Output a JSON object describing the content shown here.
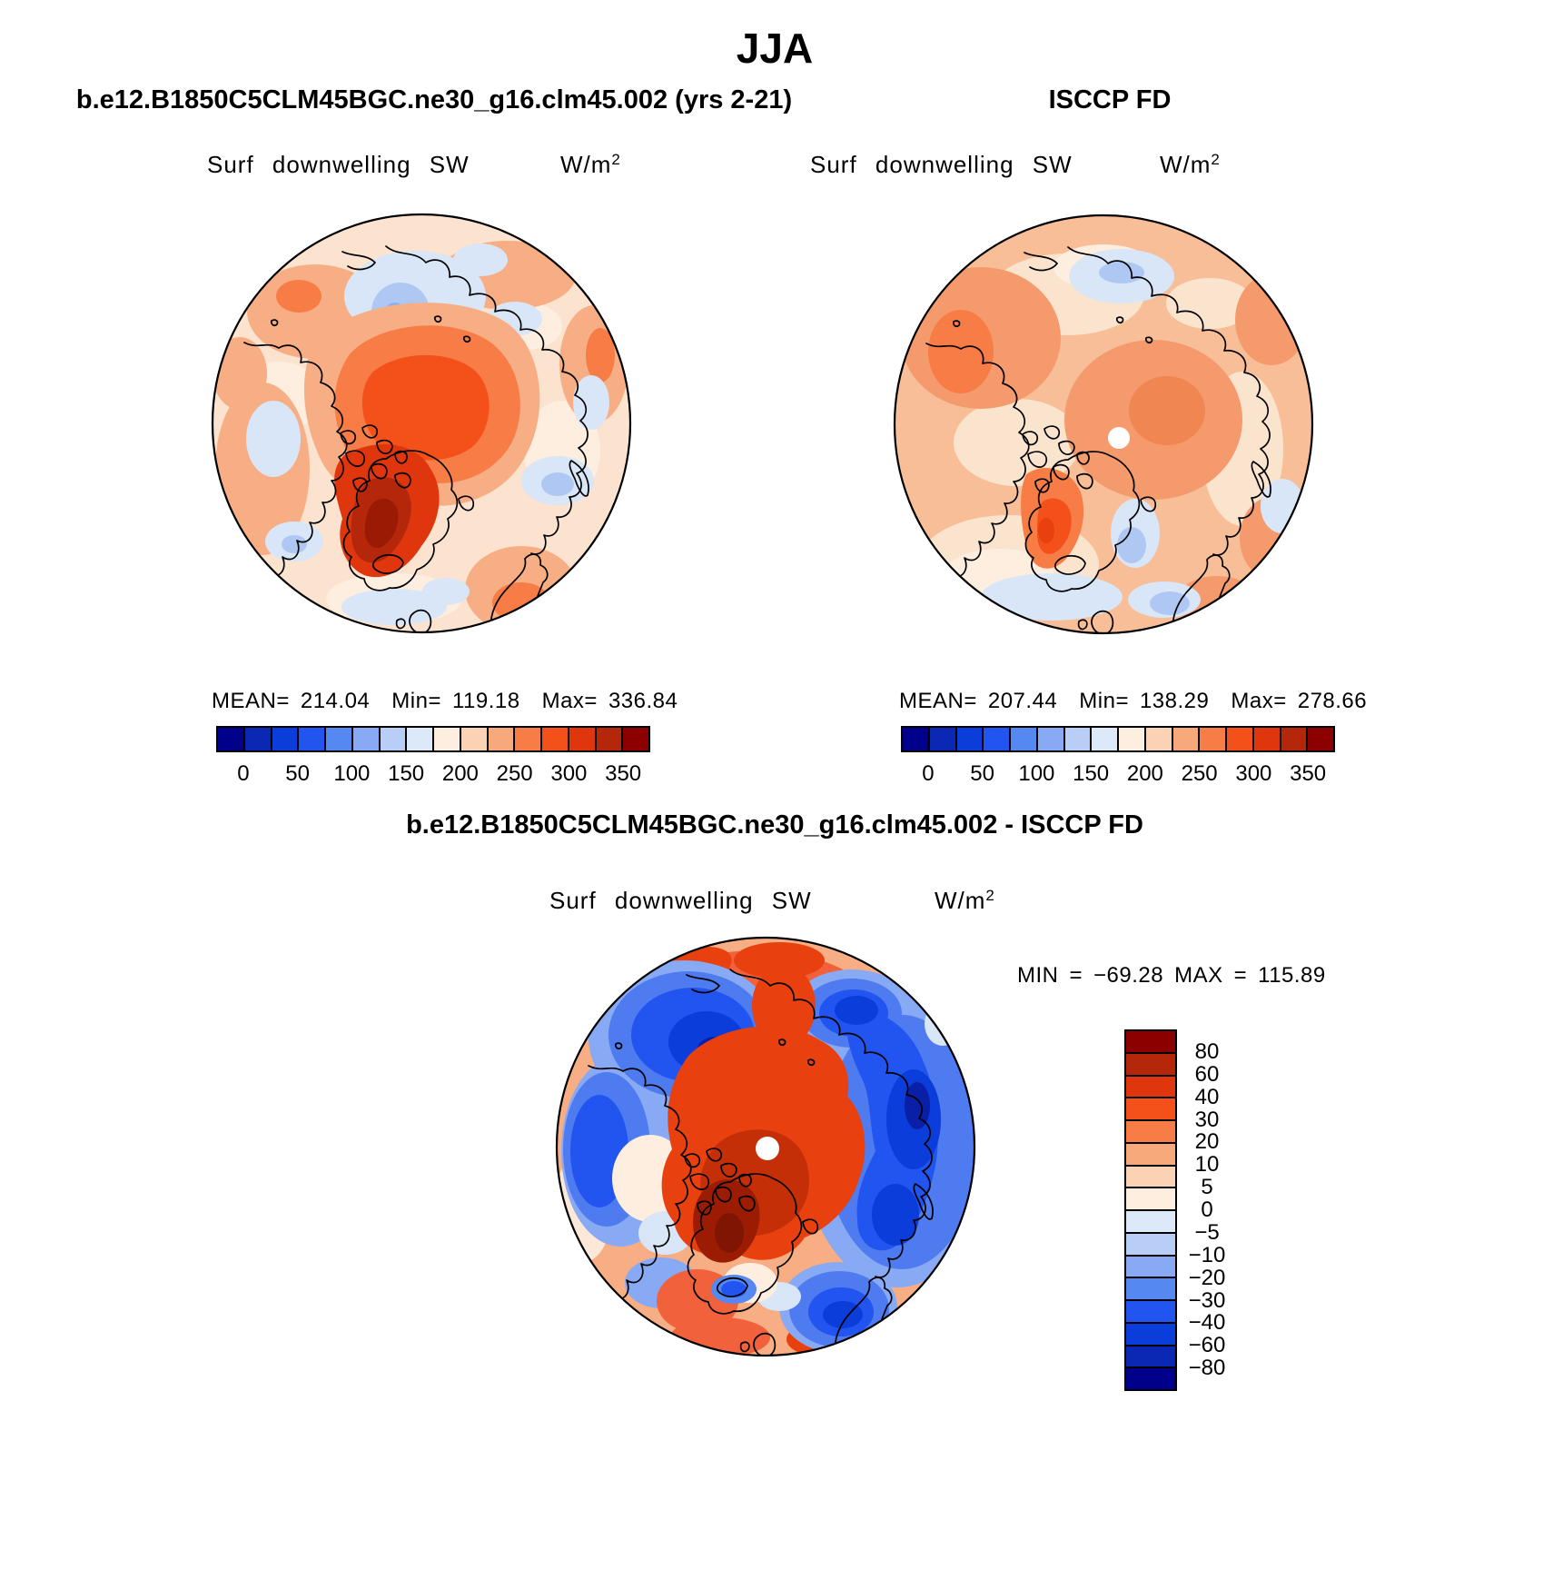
{
  "title": "JJA",
  "panels": {
    "model": {
      "header": "b.e12.B1850C5CLM45BGC.ne30_g16.clm45.002 (yrs 2-21)",
      "field": "Surf downwelling SW",
      "units": "W/m",
      "units_exponent": "2",
      "stats": {
        "mean_label": "MEAN=",
        "mean": "214.04",
        "min_label": "Min=",
        "min": "119.18",
        "max_label": "Max=",
        "max": "336.84"
      }
    },
    "obs": {
      "header": "ISCCP FD",
      "field": "Surf downwelling SW",
      "units": "W/m",
      "units_exponent": "2",
      "stats": {
        "mean_label": "MEAN=",
        "mean": "207.44",
        "min_label": "Min=",
        "min": "138.29",
        "max_label": "Max=",
        "max": "278.66"
      }
    },
    "diff": {
      "header": "b.e12.B1850C5CLM45BGC.ne30_g16.clm45.002 - ISCCP FD",
      "field": "Surf downwelling SW",
      "units": "W/m",
      "units_exponent": "2",
      "stats": {
        "min_label": "MIN",
        "min_eq": "=",
        "min": "−69.28",
        "max_label": "MAX",
        "max_eq": "=",
        "max": "115.89"
      }
    }
  },
  "colorbars": {
    "absolute": {
      "orientation": "horizontal",
      "colors": [
        "#00008B",
        "#0A28B4",
        "#0B3DDB",
        "#2255F0",
        "#5588F0",
        "#88AAF4",
        "#B8CEF6",
        "#DCE9F8",
        "#FDEEDF",
        "#FAD3B5",
        "#F8A97B",
        "#F87C45",
        "#F4511A",
        "#E0360D",
        "#B5270B",
        "#8C0000"
      ],
      "ticks": [
        "0",
        "50",
        "100",
        "150",
        "200",
        "250",
        "300",
        "350"
      ],
      "tick_boundary_indices": [
        1,
        3,
        5,
        7,
        9,
        11,
        13,
        15
      ]
    },
    "difference": {
      "orientation": "vertical",
      "colors": [
        "#8C0000",
        "#B5270B",
        "#E0360D",
        "#F4511A",
        "#F87C45",
        "#F8A97B",
        "#FAD3B5",
        "#FDEEDF",
        "#DCE9F8",
        "#B8CEF6",
        "#88AAF4",
        "#5588F0",
        "#2255F0",
        "#0B3DDB",
        "#0A28B4",
        "#00008B"
      ],
      "ticks": [
        "80",
        "60",
        "40",
        "30",
        "20",
        "10",
        "5",
        "0",
        "−5",
        "−10",
        "−20",
        "−30",
        "−40",
        "−60",
        "−80"
      ],
      "tick_boundary_indices": [
        1,
        2,
        3,
        4,
        5,
        6,
        7,
        8,
        9,
        10,
        11,
        12,
        13,
        14,
        15
      ]
    }
  },
  "chart_data": [
    {
      "type": "heatmap",
      "subtype": "polar_stereographic_contour_map",
      "panel": "model",
      "season": "JJA",
      "title": "b.e12.B1850C5CLM45BGC.ne30_g16.clm45.002 (yrs 2-21)",
      "variable": "Surf downwelling SW",
      "units": "W/m^2",
      "stats": {
        "mean": 214.04,
        "min": 119.18,
        "max": 336.84
      },
      "contour_levels": [
        0,
        25,
        50,
        75,
        100,
        125,
        150,
        175,
        200,
        225,
        250,
        275,
        300,
        325,
        350
      ],
      "legend_position": "bottom",
      "notes": "Dark red maximum (>300) over Greenland ice sheet; broad orange 225-275 over central Arctic Ocean; pale peach 150-200 ring elsewhere with light-blue patches (<150) over Norwegian Sea, Bering Strait, Baffin Bay, N Atlantic and N Pacific."
    },
    {
      "type": "heatmap",
      "subtype": "polar_stereographic_contour_map",
      "panel": "obs",
      "season": "JJA",
      "title": "ISCCP FD",
      "variable": "Surf downwelling SW",
      "units": "W/m^2",
      "stats": {
        "mean": 207.44,
        "min": 138.29,
        "max": 278.66
      },
      "contour_levels": [
        0,
        25,
        50,
        75,
        100,
        125,
        150,
        175,
        200,
        225,
        250,
        275,
        300,
        325,
        350
      ],
      "legend_position": "bottom",
      "notes": "Smoother field, mostly 175-225 salmon tones; small white observational data hole at the pole; orange 225-275 over Greenland; light blue (<150) over Greenland Sea, N Atlantic south of Iceland and near the top of the domain."
    },
    {
      "type": "heatmap",
      "subtype": "polar_stereographic_contour_map",
      "panel": "difference",
      "season": "JJA",
      "title": "b.e12.B1850C5CLM45BGC.ne30_g16.clm45.002 - ISCCP FD",
      "variable": "Surf downwelling SW",
      "units": "W/m^2",
      "stats": {
        "min": -69.28,
        "max": 115.89
      },
      "contour_levels": [
        -80,
        -60,
        -40,
        -30,
        -20,
        -10,
        -5,
        0,
        5,
        10,
        20,
        30,
        40,
        60,
        80
      ],
      "legend_position": "right",
      "notes": "Model minus ISCCP FD: strong positive bias (+30 to >+80, dark red) over central Arctic Ocean, Greenland and Canadian Archipelago; strong negative bias (-20 to -69, deep blue) over Bering/Chukchi Seas, Canadian land, Norwegian/Barents Seas and Scandinavia; positive ring along outer mid-latitude edge; white dot at pole."
    }
  ]
}
